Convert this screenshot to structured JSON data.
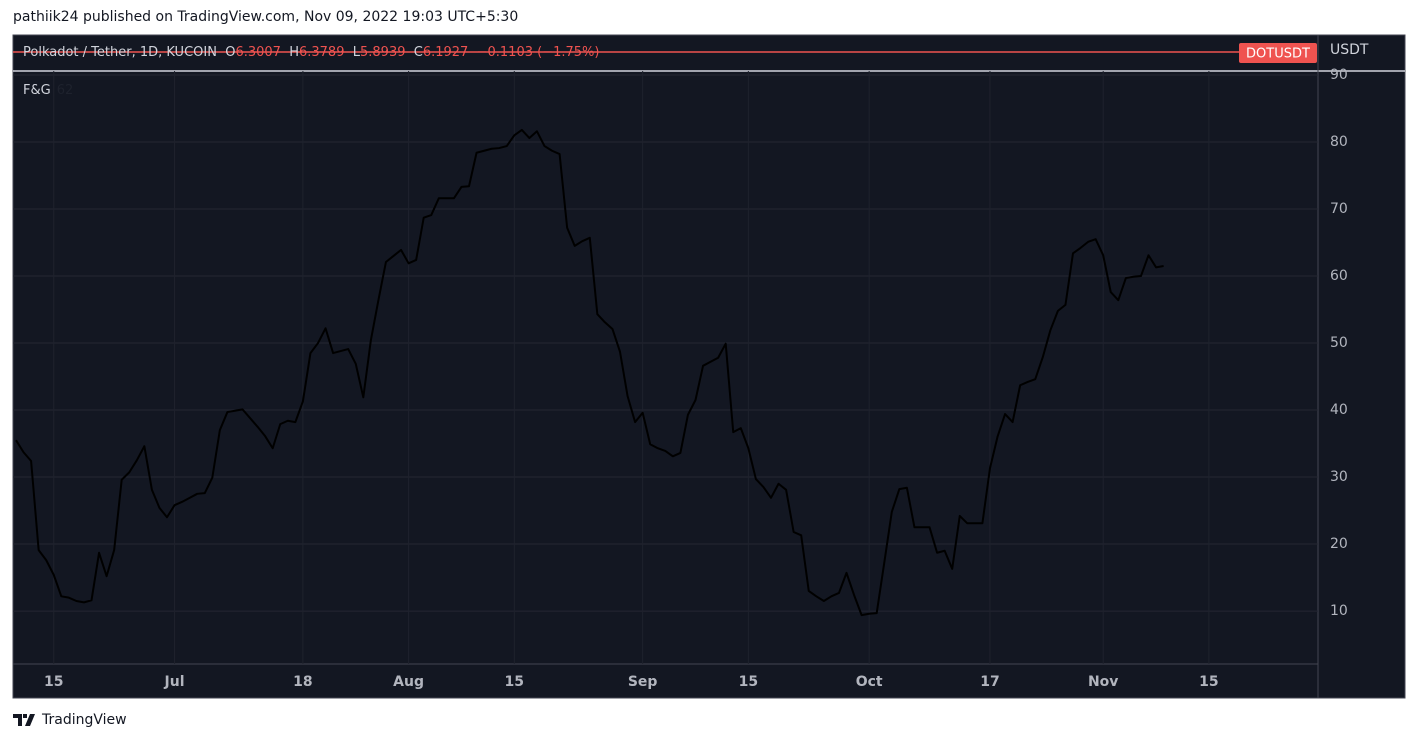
{
  "header": {
    "text": "pathiik24 published on TradingView.com, Nov 09, 2022 19:03 UTC+5:30"
  },
  "main_series": {
    "name": "Polkadot / Tether, 1D, KUCOIN",
    "o_label": "O",
    "open": "6.3007",
    "h_label": "H",
    "high": "6.3789",
    "l_label": "L",
    "low": "5.8939",
    "c_label": "C",
    "close": "6.1927",
    "change": "−0.1103 (−1.75%)",
    "symbol": "DOTUSDT",
    "currency": "USDT"
  },
  "footer": {
    "brand": "TradingView"
  },
  "chart_data": {
    "type": "line",
    "x": [
      "Jun 10",
      "Jun 11",
      "Jun 12",
      "Jun 13",
      "Jun 14",
      "Jun 15",
      "Jun 16",
      "Jun 17",
      "Jun 18",
      "Jun 19",
      "Jun 20",
      "Jun 21",
      "Jun 22",
      "Jun 23",
      "Jun 24",
      "Jun 25",
      "Jun 26",
      "Jun 27",
      "Jun 28",
      "Jun 29",
      "Jun 30",
      "Jul 1",
      "Jul 2",
      "Jul 3",
      "Jul 4",
      "Jul 5",
      "Jul 6",
      "Jul 7",
      "Jul 8",
      "Jul 9",
      "Jul 10",
      "Jul 11",
      "Jul 12",
      "Jul 13",
      "Jul 14",
      "Jul 15",
      "Jul 16",
      "Jul 17",
      "Jul 18",
      "Jul 19",
      "Jul 20",
      "Jul 21",
      "Jul 22",
      "Jul 23",
      "Jul 24",
      "Jul 25",
      "Jul 26",
      "Jul 27",
      "Jul 28",
      "Jul 29",
      "Jul 30",
      "Jul 31",
      "Aug 1",
      "Aug 2",
      "Aug 3",
      "Aug 4",
      "Aug 5",
      "Aug 6",
      "Aug 7",
      "Aug 8",
      "Aug 9",
      "Aug 10",
      "Aug 11",
      "Aug 12",
      "Aug 13",
      "Aug 14",
      "Aug 15",
      "Aug 16",
      "Aug 17",
      "Aug 18",
      "Aug 19",
      "Aug 20",
      "Aug 21",
      "Aug 22",
      "Aug 23",
      "Aug 24",
      "Aug 25",
      "Aug 26",
      "Aug 27",
      "Aug 28",
      "Aug 29",
      "Aug 30",
      "Aug 31",
      "Sep 1",
      "Sep 2",
      "Sep 3",
      "Sep 4",
      "Sep 5",
      "Sep 6",
      "Sep 7",
      "Sep 8",
      "Sep 9",
      "Sep 10",
      "Sep 11",
      "Sep 12",
      "Sep 13",
      "Sep 14",
      "Sep 15",
      "Sep 16",
      "Sep 17",
      "Sep 18",
      "Sep 19",
      "Sep 20",
      "Sep 21",
      "Sep 22",
      "Sep 23",
      "Sep 24",
      "Sep 25",
      "Sep 26",
      "Sep 27",
      "Sep 28",
      "Sep 29",
      "Sep 30",
      "Oct 1",
      "Oct 2",
      "Oct 3",
      "Oct 4",
      "Oct 5",
      "Oct 6",
      "Oct 7",
      "Oct 8",
      "Oct 9",
      "Oct 10",
      "Oct 11",
      "Oct 12",
      "Oct 13",
      "Oct 14",
      "Oct 15",
      "Oct 16",
      "Oct 17",
      "Oct 18",
      "Oct 19",
      "Oct 20",
      "Oct 21",
      "Oct 22",
      "Oct 23",
      "Oct 24",
      "Oct 25",
      "Oct 26",
      "Oct 27",
      "Oct 28",
      "Oct 29",
      "Oct 30",
      "Oct 31",
      "Nov 1",
      "Nov 2",
      "Nov 3",
      "Nov 4",
      "Nov 5",
      "Nov 6",
      "Nov 7",
      "Nov 8",
      "Nov 9"
    ],
    "series": [
      {
        "name": "F&G",
        "color": "#000000",
        "last_value": 62,
        "values": [
          35.5,
          33.7,
          32.4,
          19.1,
          17.6,
          15.4,
          12.2,
          12,
          11.5,
          11.3,
          11.6,
          18.7,
          15.2,
          19.1,
          29.6,
          30.7,
          32.5,
          34.6,
          28.1,
          25.4,
          24,
          25.8,
          26.3,
          26.9,
          27.5,
          27.6,
          29.9,
          37,
          39.7,
          39.9,
          40.1,
          38.8,
          37.5,
          36.1,
          34.3,
          37.9,
          38.4,
          38.2,
          41.3,
          48.5,
          50,
          52.2,
          48.5,
          48.8,
          49.1,
          46.9,
          41.9,
          50.4,
          56.4,
          62.1,
          63,
          63.9,
          61.9,
          62.4,
          68.7,
          69.1,
          71.6,
          71.6,
          71.6,
          73.3,
          73.4,
          78.4,
          78.7,
          79,
          79.1,
          79.4,
          81,
          81.8,
          80.6,
          81.6,
          79.4,
          78.7,
          78.2,
          67.2,
          64.5,
          65.2,
          65.7,
          54.3,
          53.1,
          52.1,
          48.7,
          42.1,
          38.2,
          39.6,
          34.9,
          34.3,
          33.9,
          33.1,
          33.6,
          39.3,
          41.5,
          46.6,
          47.2,
          47.8,
          49.9,
          36.7,
          37.3,
          34.3,
          29.7,
          28.5,
          26.9,
          29,
          28.1,
          21.8,
          21.3,
          13,
          12.2,
          11.5,
          12.2,
          12.7,
          15.7,
          12.4,
          9.4,
          9.6,
          9.7,
          17.2,
          24.8,
          28.2,
          28.4,
          22.5,
          22.5,
          22.5,
          18.7,
          19,
          16.3,
          24.2,
          23.1,
          23.1,
          23.1,
          31.3,
          36,
          39.4,
          38.2,
          43.7,
          44.2,
          44.6,
          47.9,
          51.9,
          54.8,
          55.7,
          63.4,
          64.2,
          65.1,
          65.5,
          63.1,
          57.6,
          56.4,
          59.7,
          59.9,
          60,
          63.1,
          61.3,
          61.5
        ]
      }
    ],
    "ylim": [
      2.1,
      90.6
    ],
    "yticks": [
      10,
      20,
      30,
      40,
      50,
      60,
      70,
      80,
      90
    ],
    "xticks": [
      {
        "value": "Jun 15",
        "label": "15"
      },
      {
        "value": "Jul 1",
        "label": "Jul"
      },
      {
        "value": "Jul 18",
        "label": "18"
      },
      {
        "value": "Aug 1",
        "label": "Aug"
      },
      {
        "value": "Aug 15",
        "label": "15"
      },
      {
        "value": "Sep 1",
        "label": "Sep"
      },
      {
        "value": "Sep 15",
        "label": "15"
      },
      {
        "value": "Oct 1",
        "label": "Oct"
      },
      {
        "value": "Oct 17",
        "label": "17"
      },
      {
        "value": "Nov 1",
        "label": "Nov"
      },
      {
        "value": "Nov 15",
        "label": "15"
      }
    ],
    "grid": true
  }
}
